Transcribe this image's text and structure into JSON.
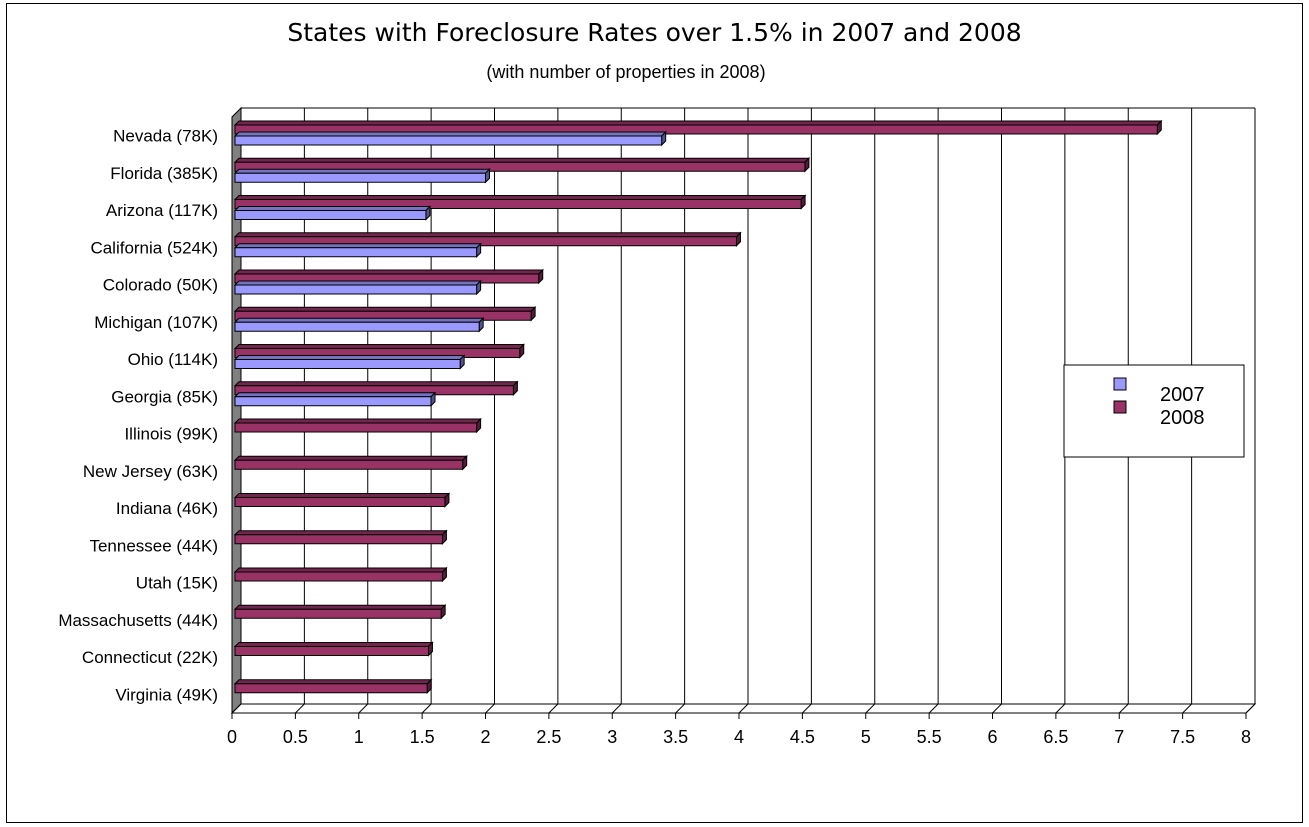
{
  "chart_data": {
    "type": "bar",
    "orientation": "horizontal",
    "title": "States with Foreclosure Rates over 1.5% in 2007 and 2008",
    "subtitle": "(with number of properties in 2008)",
    "categories": [
      "Nevada (78K)",
      "Florida (385K)",
      "Arizona  (117K)",
      "California (524K)",
      "Colorado (50K)",
      "Michigan (107K)",
      "Ohio (114K)",
      "Georgia (85K)",
      "Illinois (99K)",
      "New Jersey (63K)",
      "Indiana (46K)",
      "Tennessee (44K)",
      "Utah (15K)",
      "Massachusetts (44K)",
      "Connecticut (22K)",
      "Virginia (49K)"
    ],
    "series": [
      {
        "name": "2007",
        "color": "#9999ff",
        "values": [
          3.39,
          2.0,
          1.53,
          1.93,
          1.93,
          1.95,
          1.8,
          1.57,
          null,
          null,
          null,
          null,
          null,
          null,
          null,
          null
        ]
      },
      {
        "name": "2008",
        "color": "#993366",
        "values": [
          7.3,
          4.52,
          4.49,
          3.98,
          2.42,
          2.36,
          2.27,
          2.22,
          1.93,
          1.82,
          1.68,
          1.66,
          1.66,
          1.65,
          1.55,
          1.54
        ]
      }
    ],
    "xticks": [
      "0",
      "0.5",
      "1",
      "1.5",
      "2",
      "2.5",
      "3",
      "3.5",
      "4",
      "4.5",
      "5",
      "5.5",
      "6",
      "6.5",
      "7",
      "7.5",
      "8"
    ],
    "xlim": [
      0,
      8
    ],
    "grid": "vertical",
    "legend": "right"
  }
}
